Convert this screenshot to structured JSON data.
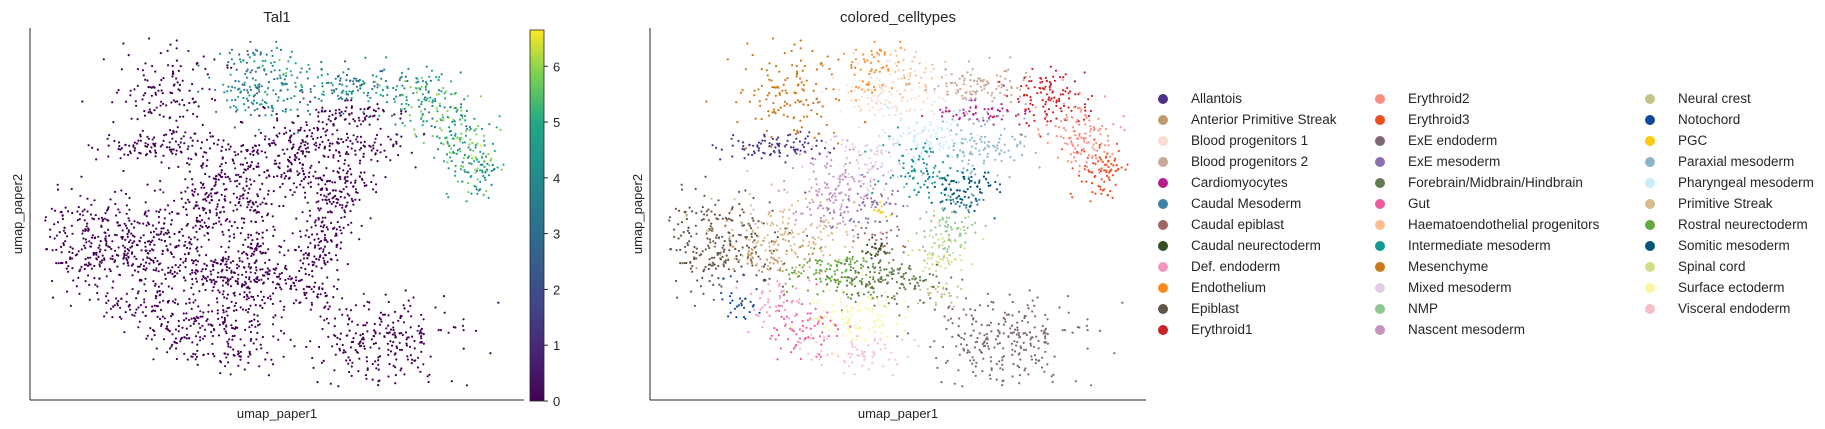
{
  "chart_data": [
    {
      "type": "scatter",
      "title": "Tal1",
      "xlabel": "umap_paper1",
      "ylabel": "umap_paper2",
      "colorbar": {
        "colormap": "viridis",
        "ticks": [
          "0",
          "1",
          "2",
          "3",
          "4",
          "5",
          "6"
        ],
        "range": [
          0,
          6.65
        ]
      },
      "xticks": "none",
      "yticks": "none",
      "grid": false
    },
    {
      "type": "scatter",
      "title": "colored_celltypes",
      "xlabel": "umap_paper1",
      "ylabel": "umap_paper2",
      "legend_position": "right",
      "xticks": "none",
      "yticks": "none",
      "grid": false,
      "categories": [
        {
          "name": "Allantois",
          "color": "#4b3287"
        },
        {
          "name": "Anterior Primitive Streak",
          "color": "#c19a6c"
        },
        {
          "name": "Blood progenitors 1",
          "color": "#f9dccf"
        },
        {
          "name": "Blood progenitors 2",
          "color": "#c9a997"
        },
        {
          "name": "Cardiomyocytes",
          "color": "#b51e8d"
        },
        {
          "name": "Caudal Mesoderm",
          "color": "#3f82a4"
        },
        {
          "name": "Caudal epiblast",
          "color": "#9e6762"
        },
        {
          "name": "Caudal neurectoderm",
          "color": "#354e23"
        },
        {
          "name": "Def. endoderm",
          "color": "#f397c0"
        },
        {
          "name": "Endothelium",
          "color": "#ff891c"
        },
        {
          "name": "Epiblast",
          "color": "#635547"
        },
        {
          "name": "Erythroid1",
          "color": "#c72228"
        },
        {
          "name": "Erythroid2",
          "color": "#f79083"
        },
        {
          "name": "Erythroid3",
          "color": "#ef4e22"
        },
        {
          "name": "ExE endoderm",
          "color": "#7f6874"
        },
        {
          "name": "ExE mesoderm",
          "color": "#8870ad"
        },
        {
          "name": "Forebrain/Midbrain/Hindbrain",
          "color": "#647a4f"
        },
        {
          "name": "Gut",
          "color": "#ef5a9d"
        },
        {
          "name": "Haematoendothelial progenitors",
          "color": "#fbbe92"
        },
        {
          "name": "Intermediate mesoderm",
          "color": "#139992"
        },
        {
          "name": "Mesenchyme",
          "color": "#cc7818"
        },
        {
          "name": "Mixed mesoderm",
          "color": "#dfcde4"
        },
        {
          "name": "NMP",
          "color": "#8ec792"
        },
        {
          "name": "Nascent mesoderm",
          "color": "#c594bf"
        },
        {
          "name": "Neural crest",
          "color": "#c3c388"
        },
        {
          "name": "Notochord",
          "color": "#0f4a9c"
        },
        {
          "name": "PGC",
          "color": "#facb12"
        },
        {
          "name": "Paraxial mesoderm",
          "color": "#8db5ce"
        },
        {
          "name": "Pharyngeal mesoderm",
          "color": "#c9ebfb"
        },
        {
          "name": "Primitive Streak",
          "color": "#dabb8c"
        },
        {
          "name": "Rostral neurectoderm",
          "color": "#65a83e"
        },
        {
          "name": "Somitic mesoderm",
          "color": "#005579"
        },
        {
          "name": "Spinal cord",
          "color": "#cde088"
        },
        {
          "name": "Surface ectoderm",
          "color": "#f7f79e"
        },
        {
          "name": "Visceral endoderm",
          "color": "#f6bfcb"
        }
      ]
    }
  ]
}
